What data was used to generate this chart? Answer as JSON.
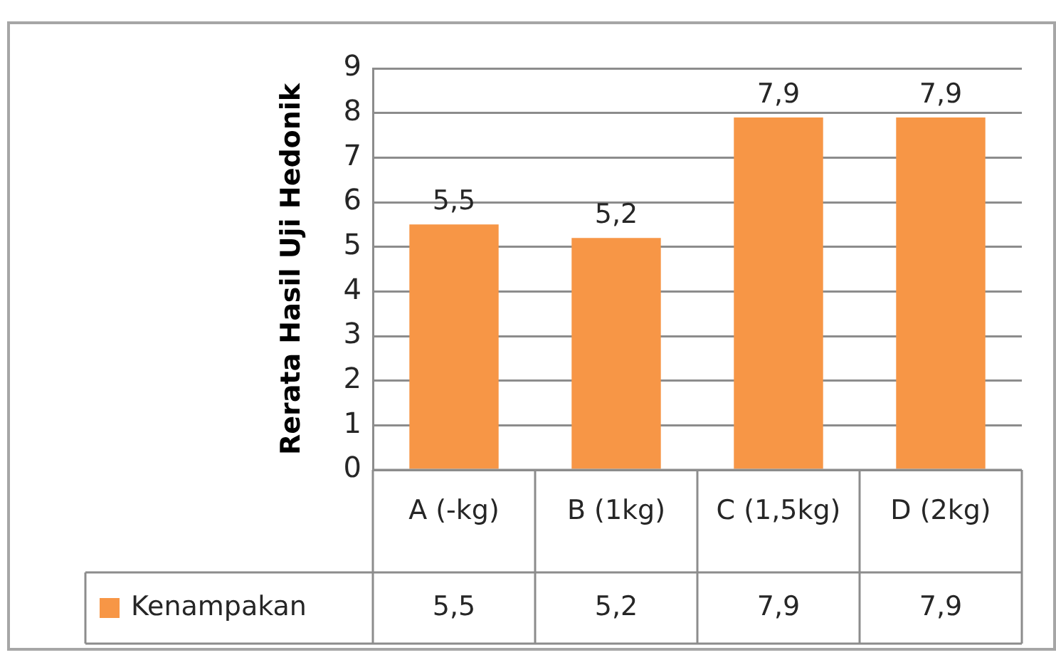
{
  "chart_data": {
    "type": "bar",
    "ylabel": "Rerata Hasil Uji Hedonik",
    "categories": [
      "A (-kg)",
      "B (1kg)",
      "C (1,5kg)",
      "D (2kg)"
    ],
    "series": [
      {
        "name": "Kenampakan",
        "color": "#f79646",
        "values": [
          5.5,
          5.2,
          7.9,
          7.9
        ],
        "value_labels": [
          "5,5",
          "5,2",
          "7,9",
          "7,9"
        ]
      }
    ],
    "ylim": [
      0,
      9
    ],
    "yticks": [
      0,
      1,
      2,
      3,
      4,
      5,
      6,
      7,
      8,
      9
    ],
    "grid": "y",
    "legend": "bottom"
  }
}
